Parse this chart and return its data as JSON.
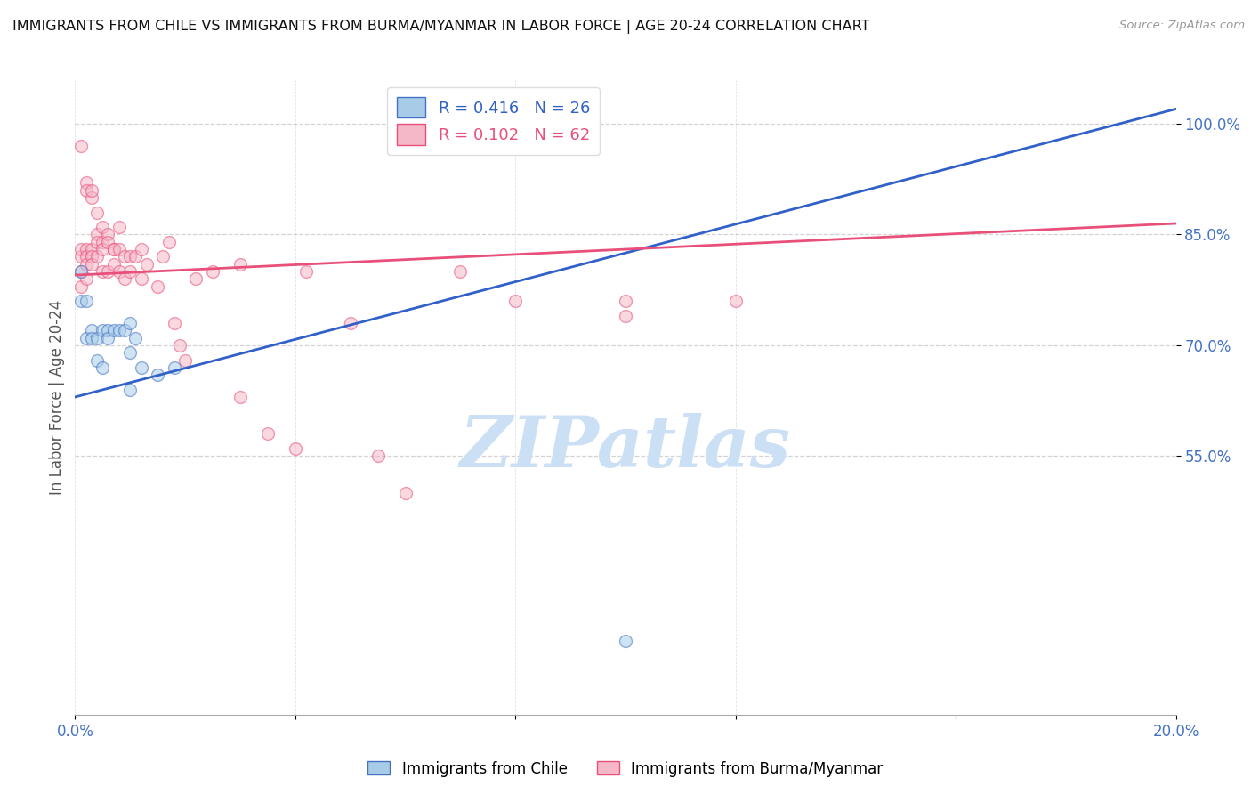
{
  "title": "IMMIGRANTS FROM CHILE VS IMMIGRANTS FROM BURMA/MYANMAR IN LABOR FORCE | AGE 20-24 CORRELATION CHART",
  "source": "Source: ZipAtlas.com",
  "ylabel": "In Labor Force | Age 20-24",
  "xlim": [
    0.0,
    0.2
  ],
  "ylim": [
    0.2,
    1.06
  ],
  "xticks": [
    0.0,
    0.04,
    0.08,
    0.12,
    0.16,
    0.2
  ],
  "xticklabels": [
    "0.0%",
    "",
    "",
    "",
    "",
    "20.0%"
  ],
  "yticks": [
    0.55,
    0.7,
    0.85,
    1.0
  ],
  "yticklabels": [
    "55.0%",
    "70.0%",
    "85.0%",
    "100.0%"
  ],
  "ytick_color": "#4472c4",
  "xtick_color": "#4472c4",
  "grid_color": "#c8c8c8",
  "background_color": "#ffffff",
  "watermark_text": "ZIPatlas",
  "watermark_color": "#cce0f5",
  "chile_color": "#a8cce8",
  "burma_color": "#f5b8c8",
  "chile_edge_color": "#4472c4",
  "burma_edge_color": "#e8507a",
  "chile_line_color": "#3060c8",
  "burma_line_color": "#e8507a",
  "chile_R": 0.416,
  "chile_N": 26,
  "burma_R": 0.102,
  "burma_N": 62,
  "chile_trend_x": [
    0.0,
    0.2
  ],
  "chile_trend_y": [
    0.63,
    1.02
  ],
  "burma_trend_x": [
    0.0,
    0.2
  ],
  "burma_trend_y": [
    0.795,
    0.865
  ],
  "chile_points_x": [
    0.001,
    0.001,
    0.002,
    0.002,
    0.003,
    0.003,
    0.004,
    0.004,
    0.005,
    0.005,
    0.006,
    0.006,
    0.007,
    0.008,
    0.009,
    0.01,
    0.01,
    0.01,
    0.011,
    0.012,
    0.015,
    0.018,
    0.065,
    0.065,
    0.065,
    0.1
  ],
  "chile_points_y": [
    0.8,
    0.76,
    0.76,
    0.71,
    0.72,
    0.71,
    0.71,
    0.68,
    0.72,
    0.67,
    0.72,
    0.71,
    0.72,
    0.72,
    0.72,
    0.73,
    0.69,
    0.64,
    0.71,
    0.67,
    0.66,
    0.67,
    0.97,
    0.97,
    0.97,
    0.3
  ],
  "burma_points_x": [
    0.001,
    0.001,
    0.001,
    0.001,
    0.001,
    0.002,
    0.002,
    0.002,
    0.002,
    0.002,
    0.002,
    0.003,
    0.003,
    0.003,
    0.003,
    0.003,
    0.004,
    0.004,
    0.004,
    0.004,
    0.005,
    0.005,
    0.005,
    0.005,
    0.006,
    0.006,
    0.006,
    0.007,
    0.007,
    0.007,
    0.008,
    0.008,
    0.008,
    0.009,
    0.009,
    0.01,
    0.01,
    0.011,
    0.012,
    0.012,
    0.013,
    0.015,
    0.016,
    0.017,
    0.018,
    0.019,
    0.02,
    0.022,
    0.025,
    0.03,
    0.03,
    0.035,
    0.04,
    0.042,
    0.05,
    0.055,
    0.06,
    0.07,
    0.08,
    0.1,
    0.1,
    0.12
  ],
  "burma_points_y": [
    0.8,
    0.82,
    0.83,
    0.78,
    0.97,
    0.92,
    0.91,
    0.83,
    0.82,
    0.81,
    0.79,
    0.9,
    0.91,
    0.83,
    0.82,
    0.81,
    0.88,
    0.85,
    0.84,
    0.82,
    0.86,
    0.84,
    0.83,
    0.8,
    0.85,
    0.84,
    0.8,
    0.83,
    0.83,
    0.81,
    0.86,
    0.83,
    0.8,
    0.82,
    0.79,
    0.82,
    0.8,
    0.82,
    0.83,
    0.79,
    0.81,
    0.78,
    0.82,
    0.84,
    0.73,
    0.7,
    0.68,
    0.79,
    0.8,
    0.81,
    0.63,
    0.58,
    0.56,
    0.8,
    0.73,
    0.55,
    0.5,
    0.8,
    0.76,
    0.74,
    0.76,
    0.76
  ],
  "marker_size": 100,
  "marker_alpha": 0.55,
  "marker_linewidth": 1.0
}
